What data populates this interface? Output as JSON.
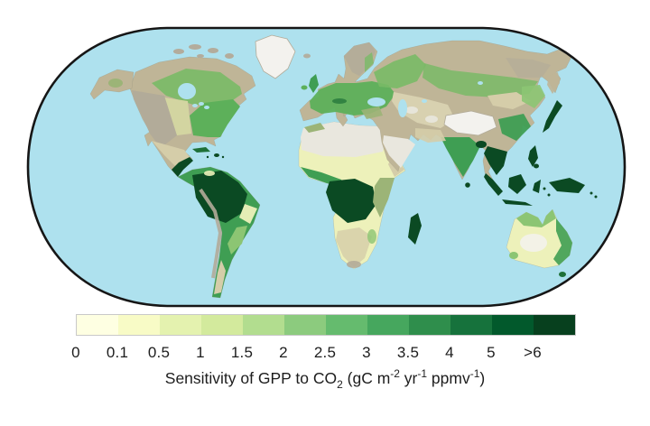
{
  "figure": {
    "legend": {
      "tick_labels": [
        "0",
        "0.1",
        "0.5",
        "1",
        "1.5",
        "2",
        "2.5",
        "3",
        "3.5",
        "4",
        "5",
        ">6"
      ],
      "colors": [
        "#feffe2",
        "#f8fbc6",
        "#e4f2af",
        "#d3ea9d",
        "#b2dd8f",
        "#8ccb7e",
        "#65bb6e",
        "#46a75e",
        "#2f8e4c",
        "#16723c",
        "#02592c",
        "#07401e"
      ],
      "border_color": "#c9c9c9"
    },
    "caption": {
      "segments": [
        {
          "t": "Sensitivity of GPP to CO",
          "s": "n"
        },
        {
          "t": "2",
          "s": "sub"
        },
        {
          "t": " (gC m",
          "s": "n"
        },
        {
          "t": "-2",
          "s": "sup"
        },
        {
          "t": " yr",
          "s": "n"
        },
        {
          "t": "-1",
          "s": "sup"
        },
        {
          "t": " ppmv",
          "s": "n"
        },
        {
          "t": "-1",
          "s": "sup"
        },
        {
          "t": ")",
          "s": "n"
        }
      ]
    },
    "map": {
      "ocean_color": "#aee1ee",
      "outline_color": "#161616",
      "colors": {
        "ice": "#f3f2ee",
        "desert_white": "#e9e7de",
        "sand": "#d5cda9",
        "tundra": "#bfb597",
        "arctic_gray": "#b3ac9c",
        "mountain": "#b2ab99",
        "steppe": "#d8d1b0",
        "plains": "#d3d5a1",
        "pale_grass": "#edf1ba",
        "olive": "#9cb477",
        "light_green": "#8cc573",
        "boreal": "#79ba66",
        "temperate": "#5db05a",
        "green": "#3f9e53",
        "dark_green": "#1e7038",
        "deep_green": "#0b4a23"
      }
    }
  },
  "chart_data": {
    "type": "heatmap",
    "variant": "global-choropleth-world-map",
    "title": "Sensitivity of GPP to CO2 (gC m-2 yr-1 ppmv-1)",
    "units": "gC m-2 yr-1 ppmv-1",
    "legend_position": "bottom",
    "colorbar": {
      "orientation": "horizontal",
      "tick_labels": [
        "0",
        "0.1",
        "0.5",
        "1",
        "1.5",
        "2",
        "2.5",
        "3",
        "3.5",
        "4",
        "5",
        ">6"
      ],
      "bin_boundaries": [
        0,
        0.1,
        0.5,
        1,
        1.5,
        2,
        2.5,
        3,
        3.5,
        4,
        5,
        6
      ],
      "open_ended_last_bin": true,
      "bin_colors": [
        "#feffe2",
        "#f8fbc6",
        "#e4f2af",
        "#d3ea9d",
        "#b2dd8f",
        "#8ccb7e",
        "#65bb6e",
        "#46a75e",
        "#2f8e4c",
        "#16723c",
        "#02592c",
        "#07401e"
      ]
    },
    "map_readings": [
      {
        "region": "Amazon basin",
        "value": ">6"
      },
      {
        "region": "Congo basin",
        "value": ">6"
      },
      {
        "region": "Maritime Southeast Asia / New Guinea / Madagascar",
        "value": ">6"
      },
      {
        "region": "Central America and Caribbean",
        "value": "5->6"
      },
      {
        "region": "India and Indochina",
        "value": "3->6"
      },
      {
        "region": "Eastern North America",
        "value": "2-4"
      },
      {
        "region": "Europe",
        "value": "1.5-3"
      },
      {
        "region": "Boreal Canada and Russia",
        "value": "0.5-2"
      },
      {
        "region": "Central Asian steppe and western North America",
        "value": "0.1-1"
      },
      {
        "region": "Sahara, Arabian Peninsula, Tibetan Plateau, Greenland",
        "value": "0"
      },
      {
        "region": "Australian interior",
        "value": "0-0.5"
      },
      {
        "region": "Australian north and east coasts, New Zealand",
        "value": "1->6"
      }
    ]
  }
}
